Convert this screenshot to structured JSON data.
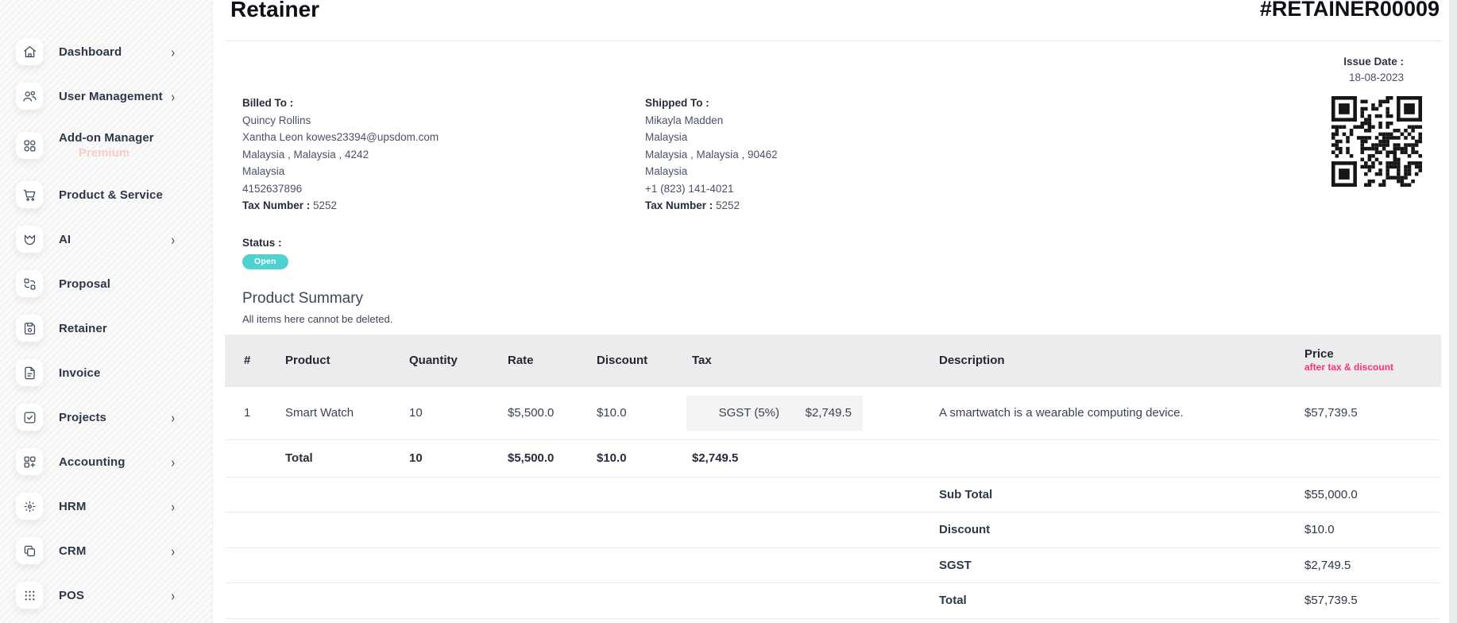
{
  "colors": {
    "accent_teal": "#4ed2cf",
    "pink_accent": "#ff316f",
    "premium_pink": "#f7cdc5",
    "table_header_bg": "#ececee",
    "sidebar_bg": "#f8f8f8"
  },
  "sidebar": {
    "items": [
      {
        "label": "Dashboard",
        "icon": "home-icon",
        "chevron": true
      },
      {
        "label": "User Management",
        "icon": "users-icon",
        "chevron": true
      },
      {
        "label": "Add-on Manager",
        "icon": "grid-icon",
        "chevron": false,
        "sublabel": "Premium"
      },
      {
        "label": "Product & Service",
        "icon": "cart-icon",
        "chevron": false
      },
      {
        "label": "AI",
        "icon": "ai-mask-icon",
        "chevron": true
      },
      {
        "label": "Proposal",
        "icon": "swap-icon",
        "chevron": false
      },
      {
        "label": "Retainer",
        "icon": "save-icon",
        "chevron": false
      },
      {
        "label": "Invoice",
        "icon": "file-icon",
        "chevron": false
      },
      {
        "label": "Projects",
        "icon": "checkbox-icon",
        "chevron": true
      },
      {
        "label": "Accounting",
        "icon": "grid-plus-icon",
        "chevron": true
      },
      {
        "label": "HRM",
        "icon": "focus-icon",
        "chevron": true
      },
      {
        "label": "CRM",
        "icon": "copy-icon",
        "chevron": true
      },
      {
        "label": "POS",
        "icon": "dots-grid-icon",
        "chevron": true
      }
    ]
  },
  "header": {
    "title": "Retainer",
    "document_number": "#RETAINER00009"
  },
  "issue_date": {
    "label": "Issue Date :",
    "value": "18-08-2023"
  },
  "billed_to": {
    "label": "Billed To :",
    "name": "Quincy Rollins",
    "line2": "Xantha Leon kowes23394@upsdom.com",
    "line3": "Malaysia , Malaysia , 4242",
    "line4": "Malaysia",
    "line5": "4152637896",
    "tax_label": "Tax Number :",
    "tax_value": "5252"
  },
  "shipped_to": {
    "label": "Shipped To :",
    "name": "Mikayla Madden",
    "line2": "Malaysia",
    "line3": "Malaysia , Malaysia , 90462",
    "line4": "Malaysia",
    "line5": "+1 (823) 141-4021",
    "tax_label": "Tax Number :",
    "tax_value": "5252"
  },
  "status": {
    "label": "Status :",
    "value": "Open"
  },
  "product_summary": {
    "title": "Product Summary",
    "note": "All items here cannot be deleted."
  },
  "table": {
    "columns": [
      "#",
      "Product",
      "Quantity",
      "Rate",
      "Discount",
      "Tax",
      "Description",
      "Price"
    ],
    "price_subnote": "after tax & discount",
    "rows": [
      {
        "num": "1",
        "product": "Smart Watch",
        "quantity": "10",
        "rate": "$5,500.0",
        "discount": "$10.0",
        "tax_name": "SGST (5%)",
        "tax_amount": "$2,749.5",
        "description": "A smartwatch is a wearable computing device.",
        "price": "$57,739.5"
      }
    ],
    "total_row": {
      "label": "Total",
      "quantity": "10",
      "rate": "$5,500.0",
      "discount": "$10.0",
      "tax": "$2,749.5"
    },
    "summary": [
      {
        "label": "Sub Total",
        "value": "$55,000.0"
      },
      {
        "label": "Discount",
        "value": "$10.0"
      },
      {
        "label": "SGST",
        "value": "$2,749.5"
      },
      {
        "label": "Total",
        "value": "$57,739.5"
      }
    ]
  }
}
